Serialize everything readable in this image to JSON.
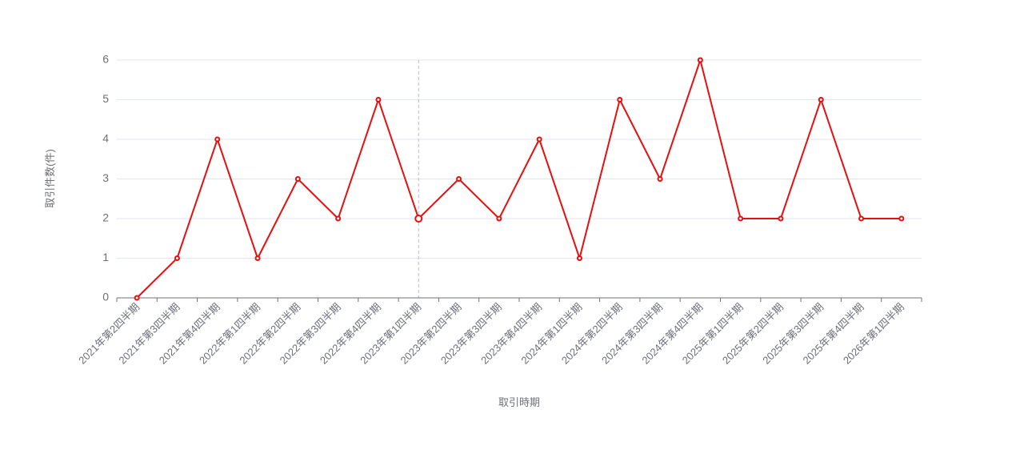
{
  "chart_data": {
    "type": "line",
    "xlabel": "取引時期",
    "ylabel": "取引件数(件)",
    "categories": [
      "2021年第2四半期",
      "2021年第3四半期",
      "2021年第4四半期",
      "2022年第1四半期",
      "2022年第2四半期",
      "2022年第3四半期",
      "2022年第4四半期",
      "2023年第1四半期",
      "2023年第2四半期",
      "2023年第3四半期",
      "2023年第4四半期",
      "2024年第1四半期",
      "2024年第2四半期",
      "2024年第3四半期",
      "2024年第4四半期",
      "2025年第1四半期",
      "2025年第2四半期",
      "2025年第3四半期",
      "2025年第4四半期",
      "2026年第1四半期"
    ],
    "series": [
      {
        "name": "取引件数",
        "color": "#e60f0f",
        "values": [
          0,
          1,
          4,
          1,
          3,
          2,
          5,
          2,
          3,
          2,
          4,
          1,
          5,
          3,
          6,
          2,
          2,
          5,
          2,
          2
        ]
      }
    ],
    "ylim": [
      0,
      6
    ],
    "yticks": [
      0,
      1,
      2,
      3,
      4,
      5,
      6
    ],
    "grid": true
  }
}
